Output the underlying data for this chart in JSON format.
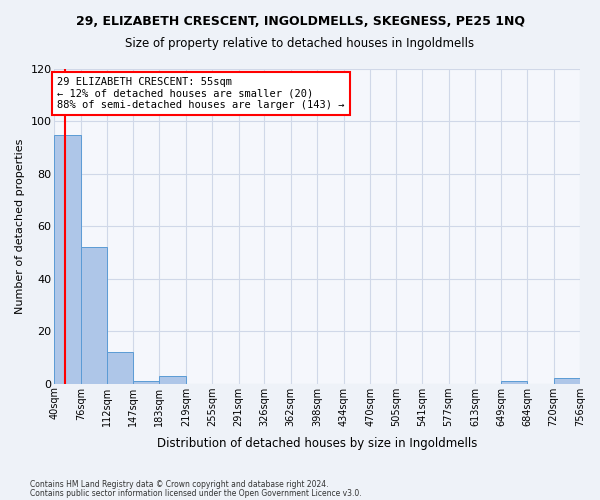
{
  "title1": "29, ELIZABETH CRESCENT, INGOLDMELLS, SKEGNESS, PE25 1NQ",
  "title2": "Size of property relative to detached houses in Ingoldmells",
  "xlabel": "Distribution of detached houses by size in Ingoldmells",
  "ylabel": "Number of detached properties",
  "footnote1": "Contains HM Land Registry data © Crown copyright and database right 2024.",
  "footnote2": "Contains public sector information licensed under the Open Government Licence v3.0.",
  "annotation_line1": "29 ELIZABETH CRESCENT: 55sqm",
  "annotation_line2": "← 12% of detached houses are smaller (20)",
  "annotation_line3": "88% of semi-detached houses are larger (143) →",
  "bar_color": "#aec6e8",
  "bar_edge_color": "#5b9bd5",
  "red_line_x": 55,
  "bins": [
    40,
    76,
    112,
    147,
    183,
    219,
    255,
    291,
    326,
    362,
    398,
    434,
    470,
    505,
    541,
    577,
    613,
    649,
    684,
    720,
    756
  ],
  "counts": [
    95,
    52,
    12,
    1,
    3,
    0,
    0,
    0,
    0,
    0,
    0,
    0,
    0,
    0,
    0,
    0,
    0,
    1,
    0,
    2
  ],
  "ylim": [
    0,
    120
  ],
  "yticks": [
    0,
    20,
    40,
    60,
    80,
    100,
    120
  ],
  "grid_color": "#d0d8e8",
  "background_color": "#eef2f8",
  "plot_bg_color": "#f5f7fc"
}
